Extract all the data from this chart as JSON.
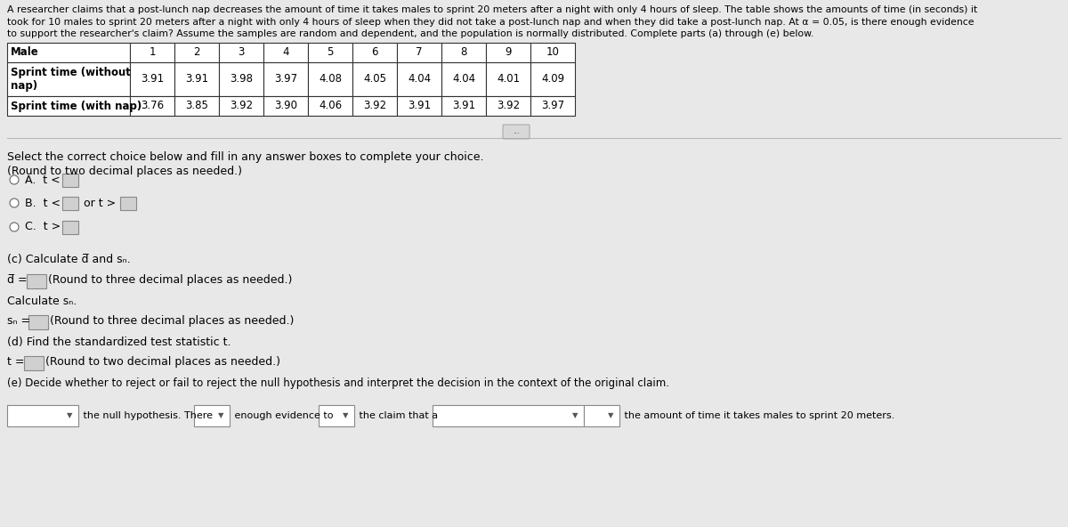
{
  "bg_color": "#e8e8e8",
  "header_line1": "A researcher claims that a post-lunch nap decreases the amount of time it takes males to sprint 20 meters after a night with only 4 hours of sleep. The table shows the amounts of time (in seconds) it",
  "header_line2": "took for 10 males to sprint 20 meters after a night with only 4 hours of sleep when they did not take a post-lunch nap and when they did take a post-lunch nap. At α = 0.05, is there enough evidence",
  "header_line3": "to support the researcher's claim? Assume the samples are random and dependent, and the population is normally distributed. Complete parts (a) through (e) below.",
  "col_numbers": [
    "1",
    "2",
    "3",
    "4",
    "5",
    "6",
    "7",
    "8",
    "9",
    "10"
  ],
  "without_nap": [
    "3.91",
    "3.91",
    "3.98",
    "3.97",
    "4.08",
    "4.05",
    "4.04",
    "4.04",
    "4.01",
    "4.09"
  ],
  "with_nap": [
    "3.76",
    "3.85",
    "3.92",
    "3.90",
    "4.06",
    "3.92",
    "3.91",
    "3.91",
    "3.92",
    "3.97"
  ],
  "body1": "Select the correct choice below and fill in any answer boxes to complete your choice.",
  "body2": "(Round to two decimal places as needed.)",
  "part_c_title": "(c) Calculate d and s",
  "part_d_title": "(d) Find the standardized test statistic t.",
  "part_e_title": "(e) Decide whether to reject or fail to reject the null hypothesis and interpret the decision in the context of the original claim.",
  "e_text1": " the null hypothesis. There",
  "e_text2": " enough evidence to",
  "e_text3": " the claim that a",
  "e_text4": " the amount of time it takes males to sprint 20 meters."
}
